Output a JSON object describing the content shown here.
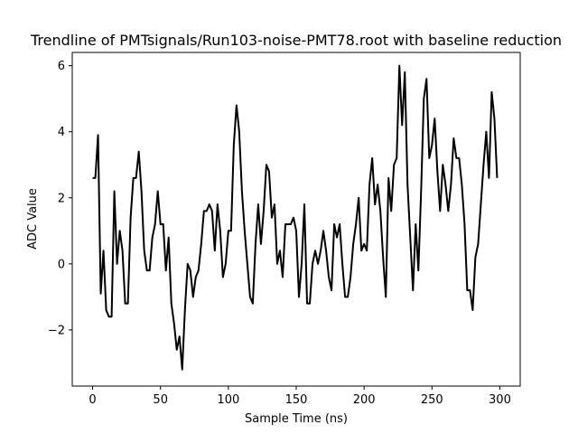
{
  "chart_data": {
    "type": "line",
    "title": "Trendline of PMTsignals/Run103-noise-PMT78.root with baseline reduction",
    "xlabel": "Sample Time (ns)",
    "ylabel": "ADC Value",
    "xlim": [
      -15,
      315
    ],
    "ylim": [
      -3.7,
      6.4
    ],
    "xticks": [
      0,
      50,
      100,
      150,
      200,
      250,
      300
    ],
    "yticks": [
      -2,
      0,
      2,
      4,
      6
    ],
    "ytick_labels": [
      "−2",
      "0",
      "2",
      "4",
      "6"
    ],
    "grid": false,
    "line_color": "#000000",
    "series": [
      {
        "x": [
          0,
          2,
          4,
          6,
          8,
          10,
          12,
          14,
          16,
          18,
          20,
          22,
          24,
          26,
          28,
          30,
          32,
          34,
          36,
          38,
          40,
          42,
          44,
          46,
          48,
          50,
          52,
          54,
          56,
          58,
          60,
          62,
          64,
          66,
          68,
          70,
          72,
          74,
          76,
          78,
          80,
          82,
          84,
          86,
          88,
          90,
          92,
          94,
          96,
          98,
          100,
          102,
          104,
          106,
          108,
          110,
          112,
          114,
          116,
          118,
          120,
          122,
          124,
          126,
          128,
          130,
          132,
          134,
          136,
          138,
          140,
          142,
          144,
          146,
          148,
          150,
          152,
          154,
          156,
          158,
          160,
          162,
          164,
          166,
          168,
          170,
          172,
          174,
          176,
          178,
          180,
          182,
          184,
          186,
          188,
          190,
          192,
          194,
          196,
          198,
          200,
          202,
          204,
          206,
          208,
          210,
          212,
          214,
          216,
          218,
          220,
          222,
          224,
          226,
          228,
          230,
          232,
          234,
          236,
          238,
          240,
          242,
          244,
          246,
          248,
          250,
          252,
          254,
          256,
          258,
          260,
          262,
          264,
          266,
          268,
          270,
          272,
          274,
          276,
          278,
          280,
          282,
          284,
          286,
          288,
          290,
          292,
          294,
          296,
          298
        ],
        "y": [
          2.6,
          2.6,
          3.9,
          -0.9,
          0.4,
          -1.4,
          -1.6,
          -1.6,
          2.2,
          0.0,
          1.0,
          0.4,
          -1.2,
          -1.2,
          1.4,
          2.6,
          2.6,
          3.4,
          2.2,
          0.4,
          -0.2,
          -0.2,
          0.8,
          1.2,
          2.2,
          1.2,
          1.2,
          -0.2,
          0.8,
          -1.2,
          -1.8,
          -2.6,
          -2.2,
          -3.2,
          -1.4,
          0.0,
          -0.2,
          -1.0,
          -0.4,
          -0.2,
          0.6,
          1.6,
          1.6,
          1.8,
          1.6,
          0.4,
          1.8,
          1.0,
          -0.4,
          0.0,
          1.0,
          1.0,
          3.6,
          4.8,
          4.0,
          2.2,
          1.0,
          0.0,
          -1.0,
          -1.2,
          0.6,
          1.8,
          0.6,
          1.6,
          3.0,
          2.8,
          1.4,
          1.8,
          0.0,
          0.4,
          -0.4,
          1.2,
          1.2,
          1.2,
          1.4,
          1.0,
          -1.0,
          0.0,
          1.8,
          -1.2,
          -1.2,
          0.0,
          0.4,
          0.0,
          0.4,
          1.0,
          0.4,
          -0.4,
          -0.8,
          1.2,
          0.8,
          1.2,
          0.0,
          -1.0,
          -1.0,
          -0.4,
          0.6,
          1.2,
          2.0,
          0.4,
          0.6,
          0.4,
          2.4,
          3.2,
          1.8,
          2.4,
          1.6,
          0.2,
          -1.0,
          2.6,
          1.6,
          3.0,
          3.2,
          6.0,
          4.2,
          5.8,
          2.4,
          0.8,
          -0.8,
          1.2,
          -0.2,
          2.2,
          5.0,
          5.6,
          3.2,
          3.6,
          4.4,
          2.8,
          1.6,
          3.0,
          2.4,
          1.6,
          2.4,
          3.8,
          3.2,
          3.2,
          2.4,
          1.2,
          -0.8,
          -0.8,
          -1.4,
          0.2,
          0.6,
          1.8,
          3.0,
          4.0,
          2.6,
          5.2,
          4.4,
          2.6
        ]
      }
    ]
  }
}
